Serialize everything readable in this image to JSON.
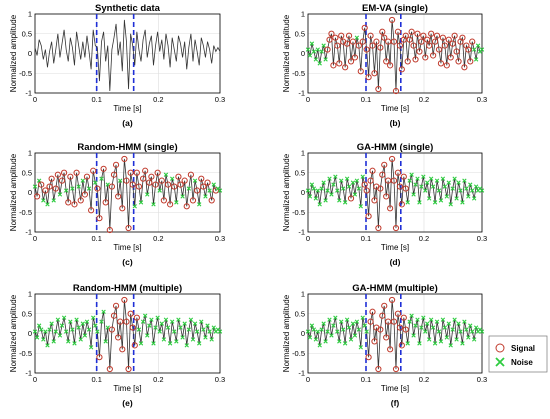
{
  "chart_data": [
    {
      "panel": "a",
      "type": "line",
      "title": "Synthetic data",
      "caption": "(a)",
      "xlabel": "Time [s]",
      "ylabel": "Normalized amplitude",
      "xlim": [
        0,
        0.3
      ],
      "ylim": [
        -1,
        1
      ],
      "xticks": [
        "0",
        "0.1",
        "0.2",
        "0.3"
      ],
      "yticks": [
        "1",
        "0.5",
        "0",
        "-0.5",
        "-1"
      ],
      "grid": true,
      "event_window": [
        0.1,
        0.16
      ],
      "series": [
        {
          "values": [
            0.15,
            -0.05,
            0.35,
            0.2,
            -0.15,
            0.1,
            -0.35,
            0.05,
            0.3,
            -0.25,
            0.1,
            0.5,
            -0.1,
            0.25,
            0.6,
            0.1,
            -0.2,
            0.4,
            0.15,
            -0.3,
            0.55,
            0.2,
            -0.15,
            0.3,
            -0.1,
            0.45,
            0.05,
            -0.4,
            0.6,
            0.2,
            0.15,
            -0.7,
            0.3,
            0.55,
            -0.2,
            0.2,
            -0.95,
            0.1,
            0.4,
            0.75,
            -0.05,
            0.3,
            -0.45,
            0.85,
            0.3,
            -0.9,
            0.5,
            0.2,
            -0.3,
            0.55,
            0.1,
            -0.2,
            0.35,
            0.6,
            -0.1,
            0.25,
            0.45,
            -0.3,
            0.2,
            0.55,
            0.05,
            0.35,
            -0.15,
            0.5,
            0.2,
            -0.35,
            0.4,
            0.1,
            -0.2,
            0.45,
            0.25,
            -0.1,
            0.3,
            -0.4,
            0.15,
            0.5,
            -0.2,
            0.35,
            0.05,
            -0.3,
            0.4,
            0.2,
            -0.1,
            0.3,
            0.1,
            -0.25,
            0.2,
            0.05,
            0.15,
            0.05
          ]
        }
      ],
      "point_classes": []
    },
    {
      "panel": "b",
      "type": "line",
      "title": "EM-VA (single)",
      "caption": "(b)",
      "xlabel": "Time [s]",
      "ylabel": "Normalized amplitude",
      "xlim": [
        0,
        0.3
      ],
      "ylim": [
        -1,
        1
      ],
      "xticks": [
        "0",
        "0.1",
        "0.2",
        "0.3"
      ],
      "yticks": [
        "1",
        "0.5",
        "0",
        "-0.5",
        "-1"
      ],
      "grid": true,
      "event_window": [
        0.1,
        0.16
      ],
      "series": [
        {
          "values": [
            0.1,
            -0.05,
            0.25,
            0.05,
            -0.15,
            0.1,
            -0.25,
            0.05,
            0.2,
            -0.15,
            0.1,
            0.35,
            0.5,
            -0.3,
            0.4,
            0.2,
            -0.25,
            0.45,
            0.3,
            -0.35,
            0.25,
            0.45,
            -0.2,
            0.3,
            -0.1,
            0.4,
            0.2,
            -0.45,
            0.3,
            0.65,
            0.1,
            -0.6,
            0.45,
            0.2,
            -0.5,
            0.3,
            -0.9,
            0.15,
            0.55,
            0.4,
            -0.2,
            0.3,
            -0.3,
            0.85,
            0.3,
            -0.95,
            0.55,
            0.2,
            -0.4,
            0.35,
            0.45,
            -0.2,
            0.35,
            0.55,
            0.2,
            -0.15,
            0.5,
            0.05,
            0.3,
            0.45,
            -0.1,
            0.35,
            0.2,
            0.5,
            -0.05,
            0.3,
            0.45,
            0.1,
            -0.25,
            0.4,
            0.2,
            -0.3,
            0.35,
            -0.1,
            0.25,
            0.45,
            0.05,
            -0.2,
            0.3,
            0.4,
            -0.35,
            0.2,
            0.1,
            -0.2,
            0.3,
            0.1,
            -0.15,
            0.2,
            0.05,
            0.1
          ]
        }
      ],
      "point_classes": [
        "n",
        "n",
        "n",
        "n",
        "n",
        "n",
        "n",
        "n",
        "n",
        "n",
        "s",
        "s",
        "s",
        "s",
        "s",
        "s",
        "s",
        "s",
        "s",
        "s",
        "s",
        "s",
        "s",
        "s",
        "s",
        "n",
        "s",
        "s",
        "s",
        "s",
        "s",
        "s",
        "s",
        "s",
        "s",
        "s",
        "s",
        "s",
        "s",
        "s",
        "s",
        "s",
        "s",
        "s",
        "s",
        "s",
        "s",
        "s",
        "s",
        "s",
        "s",
        "s",
        "s",
        "s",
        "s",
        "s",
        "s",
        "s",
        "s",
        "s",
        "s",
        "s",
        "s",
        "s",
        "s",
        "s",
        "s",
        "s",
        "s",
        "s",
        "s",
        "s",
        "s",
        "s",
        "s",
        "s",
        "s",
        "s",
        "s",
        "s",
        "s",
        "s",
        "s",
        "s",
        "s",
        "n",
        "n",
        "n",
        "n",
        "n"
      ]
    },
    {
      "panel": "c",
      "type": "line",
      "title": "Random-HMM (single)",
      "caption": "(c)",
      "xlabel": "Time [s]",
      "ylabel": "Normalized amplitude",
      "xlim": [
        0,
        0.3
      ],
      "ylim": [
        -1,
        1
      ],
      "xticks": [
        "0",
        "0.1",
        "0.2",
        "0.3"
      ],
      "yticks": [
        "1",
        "0.5",
        "0",
        "-0.5",
        "-1"
      ],
      "grid": true,
      "event_window": [
        0.1,
        0.16
      ],
      "series": [
        {
          "values": [
            0.15,
            -0.1,
            0.3,
            0.2,
            -0.2,
            0.05,
            -0.3,
            0.15,
            0.35,
            -0.2,
            0.1,
            0.45,
            -0.05,
            0.3,
            0.5,
            0.05,
            -0.25,
            0.4,
            0.1,
            -0.3,
            0.5,
            0.15,
            -0.2,
            0.3,
            -0.05,
            0.4,
            0.1,
            -0.45,
            0.55,
            0.25,
            0.1,
            -0.65,
            0.35,
            0.6,
            -0.25,
            0.2,
            -0.95,
            0.15,
            0.45,
            0.7,
            -0.1,
            0.3,
            -0.4,
            0.85,
            0.3,
            -0.9,
            0.5,
            0.2,
            -0.35,
            0.5,
            0.15,
            -0.25,
            0.35,
            0.55,
            -0.05,
            0.25,
            0.4,
            -0.3,
            0.2,
            0.5,
            0.05,
            0.3,
            -0.2,
            0.45,
            0.2,
            -0.3,
            0.35,
            0.15,
            -0.25,
            0.4,
            0.2,
            -0.1,
            0.3,
            -0.35,
            0.1,
            0.45,
            -0.2,
            0.3,
            0.05,
            -0.3,
            0.35,
            0.15,
            -0.1,
            0.25,
            0.05,
            -0.2,
            0.2,
            0.05,
            0.1,
            0.05
          ]
        }
      ],
      "point_classes": [
        "n",
        "s",
        "n",
        "s",
        "n",
        "s",
        "n",
        "s",
        "s",
        "n",
        "s",
        "s",
        "n",
        "s",
        "s",
        "n",
        "s",
        "s",
        "n",
        "s",
        "s",
        "n",
        "s",
        "n",
        "s",
        "s",
        "n",
        "s",
        "s",
        "n",
        "s",
        "s",
        "n",
        "s",
        "s",
        "n",
        "s",
        "s",
        "s",
        "s",
        "s",
        "n",
        "s",
        "s",
        "s",
        "s",
        "s",
        "s",
        "n",
        "s",
        "s",
        "n",
        "s",
        "s",
        "n",
        "s",
        "s",
        "n",
        "s",
        "s",
        "n",
        "s",
        "s",
        "n",
        "s",
        "s",
        "n",
        "s",
        "n",
        "s",
        "s",
        "n",
        "s",
        "s",
        "n",
        "s",
        "s",
        "n",
        "s",
        "n",
        "s",
        "s",
        "n",
        "s",
        "n",
        "s",
        "n",
        "s",
        "n",
        "n"
      ]
    },
    {
      "panel": "d",
      "type": "line",
      "title": "GA-HMM (single)",
      "caption": "(d)",
      "xlabel": "Time [s]",
      "ylabel": "Normalized amplitude",
      "xlim": [
        0,
        0.3
      ],
      "ylim": [
        -1,
        1
      ],
      "xticks": [
        "0",
        "0.1",
        "0.2",
        "0.3"
      ],
      "yticks": [
        "1",
        "0.5",
        "0",
        "-0.5",
        "-1"
      ],
      "grid": true,
      "event_window": [
        0.1,
        0.16
      ],
      "series": [
        {
          "values": [
            0.05,
            -0.1,
            0.2,
            0.1,
            -0.15,
            0.05,
            -0.3,
            0.1,
            0.25,
            -0.2,
            0.05,
            0.35,
            -0.05,
            0.2,
            0.4,
            0.05,
            -0.2,
            0.3,
            0.1,
            -0.25,
            0.35,
            0.15,
            -0.15,
            0.25,
            -0.05,
            0.3,
            0.1,
            -0.35,
            0.4,
            0.2,
            0.05,
            -0.6,
            0.3,
            0.55,
            -0.2,
            0.15,
            -0.9,
            0.1,
            0.45,
            0.7,
            -0.1,
            0.3,
            -0.4,
            0.85,
            0.3,
            -0.9,
            0.5,
            0.15,
            -0.3,
            0.4,
            0.1,
            -0.25,
            0.3,
            0.45,
            -0.05,
            0.2,
            0.35,
            -0.25,
            0.15,
            0.4,
            0.05,
            0.25,
            -0.15,
            0.35,
            0.15,
            -0.25,
            0.3,
            0.05,
            -0.2,
            0.35,
            0.15,
            -0.1,
            0.25,
            -0.3,
            0.1,
            0.35,
            -0.15,
            0.25,
            0.05,
            -0.25,
            0.3,
            0.1,
            -0.1,
            0.2,
            0.05,
            -0.15,
            0.15,
            0.05,
            0.1,
            0.05
          ]
        }
      ],
      "point_classes": [
        "n",
        "n",
        "n",
        "n",
        "n",
        "n",
        "n",
        "n",
        "n",
        "n",
        "n",
        "n",
        "n",
        "n",
        "n",
        "n",
        "n",
        "n",
        "n",
        "n",
        "n",
        "n",
        "s",
        "n",
        "n",
        "n",
        "n",
        "n",
        "n",
        "s",
        "s",
        "s",
        "s",
        "s",
        "s",
        "s",
        "s",
        "s",
        "s",
        "s",
        "s",
        "s",
        "s",
        "s",
        "s",
        "s",
        "s",
        "s",
        "s",
        "s",
        "s",
        "n",
        "n",
        "n",
        "n",
        "n",
        "n",
        "n",
        "n",
        "n",
        "n",
        "n",
        "n",
        "n",
        "n",
        "n",
        "n",
        "n",
        "n",
        "n",
        "n",
        "n",
        "n",
        "n",
        "n",
        "n",
        "n",
        "n",
        "n",
        "n",
        "n",
        "n",
        "n",
        "n",
        "n",
        "n",
        "n",
        "n",
        "n",
        "n"
      ]
    },
    {
      "panel": "e",
      "type": "line",
      "title": "Random-HMM (multiple)",
      "caption": "(e)",
      "xlabel": "Time [s]",
      "ylabel": "Normalized amplitude",
      "xlim": [
        0,
        0.3
      ],
      "ylim": [
        -1,
        1
      ],
      "xticks": [
        "0",
        "0.1",
        "0.2",
        "0.3"
      ],
      "yticks": [
        "1",
        "0.5",
        "0",
        "-0.5",
        "-1"
      ],
      "grid": true,
      "event_window": [
        0.1,
        0.16
      ],
      "series": [
        {
          "values": [
            0.05,
            -0.1,
            0.2,
            0.1,
            -0.15,
            0.05,
            -0.3,
            0.1,
            0.25,
            -0.2,
            0.05,
            0.35,
            -0.05,
            0.2,
            0.4,
            0.05,
            -0.2,
            0.3,
            0.1,
            -0.25,
            0.35,
            0.15,
            -0.15,
            0.25,
            -0.05,
            0.3,
            0.1,
            -0.35,
            0.4,
            0.2,
            0.05,
            -0.6,
            0.3,
            0.55,
            -0.2,
            0.15,
            -0.9,
            0.1,
            0.45,
            0.7,
            -0.1,
            0.3,
            -0.4,
            0.85,
            0.3,
            -0.9,
            0.5,
            0.15,
            -0.3,
            0.4,
            0.1,
            -0.25,
            0.3,
            0.45,
            -0.05,
            0.2,
            0.35,
            -0.25,
            0.15,
            0.4,
            0.05,
            0.25,
            -0.15,
            0.35,
            0.15,
            -0.25,
            0.3,
            0.05,
            -0.2,
            0.35,
            0.15,
            -0.1,
            0.25,
            -0.3,
            0.1,
            0.35,
            -0.15,
            0.25,
            0.05,
            -0.25,
            0.3,
            0.1,
            -0.1,
            0.2,
            0.05,
            -0.15,
            0.15,
            0.05,
            0.1,
            0.05
          ]
        }
      ],
      "point_classes": [
        "n",
        "n",
        "n",
        "n",
        "n",
        "n",
        "n",
        "n",
        "n",
        "n",
        "n",
        "n",
        "n",
        "n",
        "n",
        "n",
        "n",
        "n",
        "n",
        "n",
        "n",
        "n",
        "n",
        "n",
        "n",
        "n",
        "n",
        "n",
        "n",
        "n",
        "n",
        "s",
        "n",
        "n",
        "n",
        "n",
        "s",
        "s",
        "s",
        "s",
        "s",
        "s",
        "s",
        "s",
        "s",
        "s",
        "s",
        "s",
        "s",
        "s",
        "n",
        "n",
        "n",
        "n",
        "n",
        "n",
        "n",
        "n",
        "n",
        "n",
        "n",
        "n",
        "n",
        "n",
        "n",
        "n",
        "n",
        "n",
        "n",
        "n",
        "n",
        "n",
        "n",
        "n",
        "n",
        "n",
        "n",
        "n",
        "n",
        "n",
        "n",
        "n",
        "n",
        "n",
        "n",
        "n",
        "n",
        "n",
        "n",
        "n"
      ]
    },
    {
      "panel": "f",
      "type": "line",
      "title": "GA-HMM (multiple)",
      "caption": "(f)",
      "xlabel": "Time [s]",
      "ylabel": "Normalized amplitude",
      "xlim": [
        0,
        0.3
      ],
      "ylim": [
        -1,
        1
      ],
      "xticks": [
        "0",
        "0.1",
        "0.2",
        "0.3"
      ],
      "yticks": [
        "1",
        "0.5",
        "0",
        "-0.5",
        "-1"
      ],
      "grid": true,
      "event_window": [
        0.1,
        0.16
      ],
      "series": [
        {
          "values": [
            0.05,
            -0.1,
            0.2,
            0.1,
            -0.15,
            0.05,
            -0.3,
            0.1,
            0.25,
            -0.2,
            0.05,
            0.35,
            -0.05,
            0.2,
            0.4,
            0.05,
            -0.2,
            0.3,
            0.1,
            -0.25,
            0.35,
            0.15,
            -0.15,
            0.25,
            -0.05,
            0.3,
            0.1,
            -0.35,
            0.4,
            0.2,
            0.05,
            -0.6,
            0.3,
            0.55,
            -0.2,
            0.15,
            -0.9,
            0.1,
            0.45,
            0.7,
            -0.1,
            0.3,
            -0.4,
            0.85,
            0.3,
            -0.9,
            0.5,
            0.15,
            -0.3,
            0.4,
            0.1,
            -0.25,
            0.3,
            0.45,
            -0.05,
            0.2,
            0.35,
            -0.25,
            0.15,
            0.4,
            0.05,
            0.25,
            -0.15,
            0.35,
            0.15,
            -0.25,
            0.3,
            0.05,
            -0.2,
            0.35,
            0.15,
            -0.1,
            0.25,
            -0.3,
            0.1,
            0.35,
            -0.15,
            0.25,
            0.05,
            -0.25,
            0.3,
            0.1,
            -0.1,
            0.2,
            0.05,
            -0.15,
            0.15,
            0.05,
            0.1,
            0.05
          ]
        }
      ],
      "point_classes": [
        "n",
        "n",
        "n",
        "n",
        "n",
        "n",
        "n",
        "n",
        "n",
        "n",
        "n",
        "n",
        "n",
        "n",
        "n",
        "n",
        "n",
        "n",
        "n",
        "n",
        "n",
        "n",
        "n",
        "n",
        "n",
        "n",
        "n",
        "n",
        "n",
        "n",
        "n",
        "s",
        "s",
        "s",
        "s",
        "s",
        "s",
        "s",
        "s",
        "s",
        "s",
        "s",
        "s",
        "s",
        "s",
        "s",
        "s",
        "s",
        "s",
        "s",
        "s",
        "n",
        "n",
        "n",
        "n",
        "n",
        "n",
        "n",
        "n",
        "n",
        "n",
        "n",
        "n",
        "n",
        "n",
        "n",
        "n",
        "n",
        "n",
        "n",
        "n",
        "n",
        "n",
        "n",
        "n",
        "n",
        "n",
        "n",
        "n",
        "n",
        "n",
        "n",
        "n",
        "n",
        "n",
        "n",
        "n",
        "n",
        "n",
        "n"
      ]
    }
  ],
  "legend": {
    "placement": "right",
    "items": [
      {
        "key": "s",
        "label": "Signal",
        "marker": "circle",
        "color": "#c0392b"
      },
      {
        "key": "n",
        "label": "Noise",
        "marker": "cross",
        "color": "#2ecc40"
      }
    ]
  },
  "colors": {
    "line": "#333333",
    "event_marker": "#1f2fd6",
    "signal": "#c0392b",
    "noise": "#2ecc40",
    "grid": "#dddddd"
  }
}
